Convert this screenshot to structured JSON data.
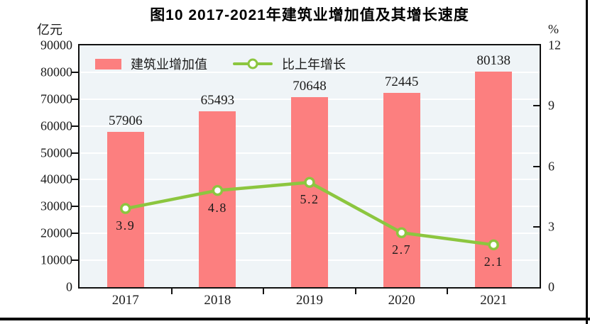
{
  "figure": {
    "title": "图10  2017-2021年建筑业增加值及其增长速度"
  },
  "chart_data": {
    "type": "bar+line",
    "title": "图10  2017-2021年建筑业增加值及其增长速度",
    "categories": [
      "2017",
      "2018",
      "2019",
      "2020",
      "2021"
    ],
    "series": [
      {
        "name": "建筑业增加值",
        "type": "bar",
        "axis": "left",
        "color": "#FC7F7F",
        "values": [
          57906,
          65493,
          70648,
          72445,
          80138
        ],
        "data_labels": [
          "57906",
          "65493",
          "70648",
          "72445",
          "80138"
        ]
      },
      {
        "name": "比上年增长",
        "type": "line",
        "axis": "right",
        "color": "#8CC63F",
        "marker": "circle-white-fill",
        "values": [
          3.9,
          4.8,
          5.2,
          2.7,
          2.1
        ],
        "data_labels": [
          "3.9",
          "4.8",
          "5.2",
          "2.7",
          "2.1"
        ]
      }
    ],
    "left_axis": {
      "unit": "亿元",
      "min": 0,
      "max": 90000,
      "tick_step": 10000,
      "ticks": [
        0,
        10000,
        20000,
        30000,
        40000,
        50000,
        60000,
        70000,
        80000,
        90000
      ]
    },
    "right_axis": {
      "unit": "%",
      "min": 0,
      "max": 12,
      "tick_step": 3,
      "ticks": [
        0,
        3,
        6,
        9,
        12
      ]
    },
    "grid": true,
    "gridline_color": "#FFFFFF",
    "plot_bg_color": "#EFF4F7",
    "legend_position": "inside-top-left"
  }
}
